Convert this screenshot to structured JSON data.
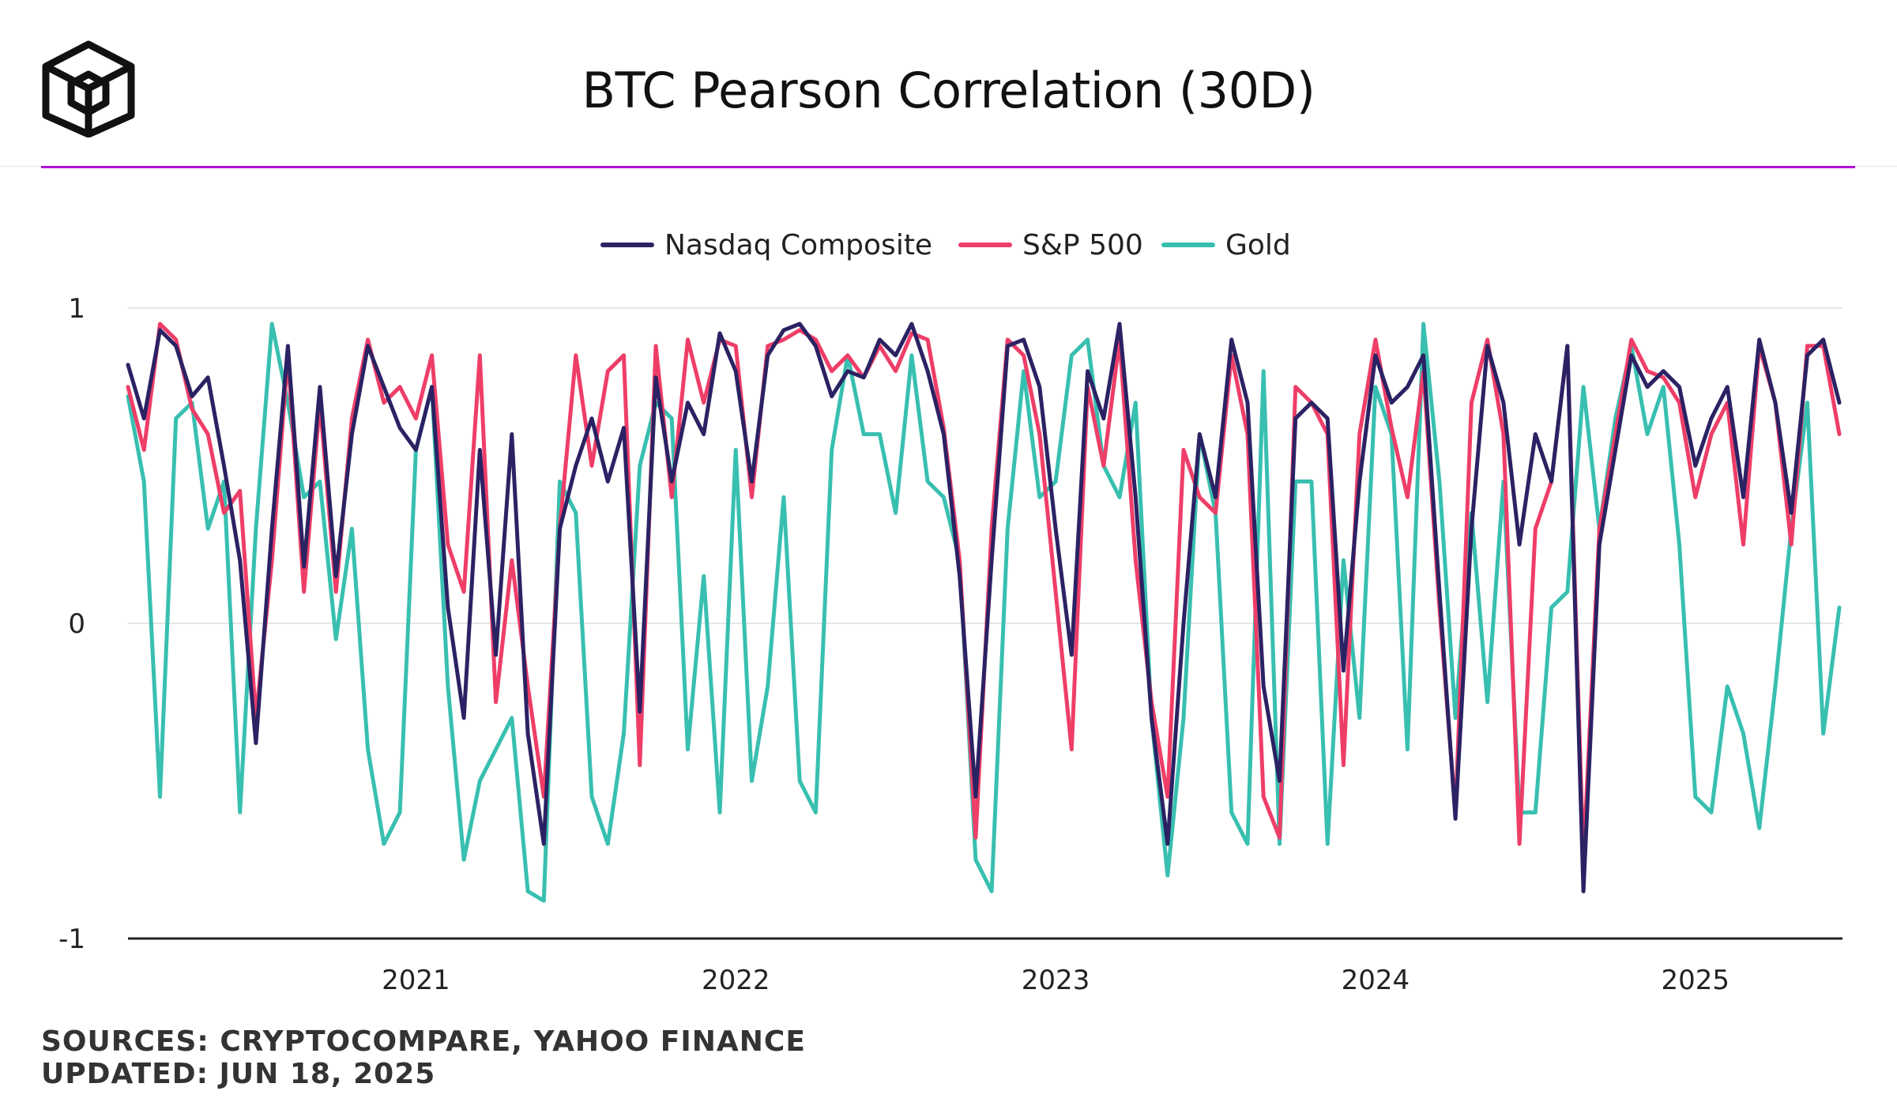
{
  "page": {
    "title": "BTC Pearson Correlation (30D)",
    "sources": "SOURCES: CRYPTOCOMPARE, YAHOO FINANCE",
    "updated": "UPDATED: JUN 18, 2025"
  },
  "colors": {
    "accent": "#B10FD6",
    "nasdaq": "#2B2264",
    "sp500": "#EE3E68",
    "gold": "#38BFB0",
    "axis": "#222222",
    "grid": "#E6E6E6"
  },
  "chart_data": {
    "type": "line",
    "title": "BTC Pearson Correlation (30D)",
    "xlabel": "",
    "ylabel": "",
    "xlim": [
      2020.1,
      2025.46
    ],
    "ylim": [
      -1,
      1
    ],
    "x_ticks": [
      2021,
      2022,
      2023,
      2024,
      2025
    ],
    "x_tick_labels": [
      "2021",
      "2022",
      "2023",
      "2024",
      "2025"
    ],
    "y_ticks": [
      1,
      0,
      -1
    ],
    "y_tick_labels": [
      "1",
      "0",
      "-1"
    ],
    "grid": true,
    "legend_position": "top-center",
    "series": [
      {
        "name": "Nasdaq Composite",
        "color_key": "nasdaq",
        "x": [
          2020.1,
          2020.15,
          2020.2,
          2020.25,
          2020.3,
          2020.35,
          2020.4,
          2020.45,
          2020.5,
          2020.55,
          2020.6,
          2020.65,
          2020.7,
          2020.75,
          2020.8,
          2020.85,
          2020.9,
          2020.95,
          2021.0,
          2021.05,
          2021.1,
          2021.15,
          2021.2,
          2021.25,
          2021.3,
          2021.35,
          2021.4,
          2021.45,
          2021.5,
          2021.55,
          2021.6,
          2021.65,
          2021.7,
          2021.75,
          2021.8,
          2021.85,
          2021.9,
          2021.95,
          2022.0,
          2022.05,
          2022.1,
          2022.15,
          2022.2,
          2022.25,
          2022.3,
          2022.35,
          2022.4,
          2022.45,
          2022.5,
          2022.55,
          2022.6,
          2022.65,
          2022.7,
          2022.75,
          2022.8,
          2022.85,
          2022.9,
          2022.95,
          2023.0,
          2023.05,
          2023.1,
          2023.15,
          2023.2,
          2023.25,
          2023.3,
          2023.35,
          2023.4,
          2023.45,
          2023.5,
          2023.55,
          2023.6,
          2023.65,
          2023.7,
          2023.75,
          2023.8,
          2023.85,
          2023.9,
          2023.95,
          2024.0,
          2024.05,
          2024.1,
          2024.15,
          2024.2,
          2024.25,
          2024.3,
          2024.35,
          2024.4,
          2024.45,
          2024.5,
          2024.55,
          2024.6,
          2024.65,
          2024.7,
          2024.75,
          2024.8,
          2024.85,
          2024.9,
          2024.95,
          2025.0,
          2025.05,
          2025.1,
          2025.15,
          2025.2,
          2025.25,
          2025.3,
          2025.35,
          2025.4,
          2025.45
        ],
        "values": [
          0.82,
          0.65,
          0.93,
          0.88,
          0.72,
          0.78,
          0.5,
          0.2,
          -0.38,
          0.3,
          0.88,
          0.18,
          0.75,
          0.15,
          0.6,
          0.88,
          0.75,
          0.62,
          0.55,
          0.75,
          0.05,
          -0.3,
          0.55,
          -0.1,
          0.6,
          -0.35,
          -0.7,
          0.3,
          0.5,
          0.65,
          0.45,
          0.62,
          -0.28,
          0.78,
          0.45,
          0.7,
          0.6,
          0.92,
          0.8,
          0.45,
          0.85,
          0.93,
          0.95,
          0.88,
          0.72,
          0.8,
          0.78,
          0.9,
          0.85,
          0.95,
          0.8,
          0.6,
          0.15,
          -0.55,
          0.2,
          0.88,
          0.9,
          0.75,
          0.3,
          -0.1,
          0.8,
          0.65,
          0.95,
          0.4,
          -0.3,
          -0.7,
          0.0,
          0.6,
          0.4,
          0.9,
          0.7,
          -0.2,
          -0.5,
          0.65,
          0.7,
          0.65,
          -0.15,
          0.45,
          0.85,
          0.7,
          0.75,
          0.85,
          0.1,
          -0.62,
          0.3,
          0.88,
          0.7,
          0.25,
          0.6,
          0.45,
          0.88,
          -0.85,
          0.25,
          0.55,
          0.85,
          0.75,
          0.8,
          0.75,
          0.5,
          0.65,
          0.75,
          0.4,
          0.9,
          0.7,
          0.35,
          0.85,
          0.9,
          0.7
        ]
      },
      {
        "name": "S&P 500",
        "color_key": "sp500",
        "x": [
          2020.1,
          2020.15,
          2020.2,
          2020.25,
          2020.3,
          2020.35,
          2020.4,
          2020.45,
          2020.5,
          2020.55,
          2020.6,
          2020.65,
          2020.7,
          2020.75,
          2020.8,
          2020.85,
          2020.9,
          2020.95,
          2021.0,
          2021.05,
          2021.1,
          2021.15,
          2021.2,
          2021.25,
          2021.3,
          2021.35,
          2021.4,
          2021.45,
          2021.5,
          2021.55,
          2021.6,
          2021.65,
          2021.7,
          2021.75,
          2021.8,
          2021.85,
          2021.9,
          2021.95,
          2022.0,
          2022.05,
          2022.1,
          2022.15,
          2022.2,
          2022.25,
          2022.3,
          2022.35,
          2022.4,
          2022.45,
          2022.5,
          2022.55,
          2022.6,
          2022.65,
          2022.7,
          2022.75,
          2022.8,
          2022.85,
          2022.9,
          2022.95,
          2023.0,
          2023.05,
          2023.1,
          2023.15,
          2023.2,
          2023.25,
          2023.3,
          2023.35,
          2023.4,
          2023.45,
          2023.5,
          2023.55,
          2023.6,
          2023.65,
          2023.7,
          2023.75,
          2023.8,
          2023.85,
          2023.9,
          2023.95,
          2024.0,
          2024.05,
          2024.1,
          2024.15,
          2024.2,
          2024.25,
          2024.3,
          2024.35,
          2024.4,
          2024.45,
          2024.5,
          2024.55,
          2024.6,
          2024.65,
          2024.7,
          2024.75,
          2024.8,
          2024.85,
          2024.9,
          2024.95,
          2025.0,
          2025.05,
          2025.1,
          2025.15,
          2025.2,
          2025.25,
          2025.3,
          2025.35,
          2025.4,
          2025.45
        ],
        "values": [
          0.75,
          0.55,
          0.95,
          0.9,
          0.68,
          0.6,
          0.35,
          0.42,
          -0.3,
          0.2,
          0.85,
          0.1,
          0.7,
          0.1,
          0.65,
          0.9,
          0.7,
          0.75,
          0.65,
          0.85,
          0.25,
          0.1,
          0.85,
          -0.25,
          0.2,
          -0.2,
          -0.55,
          0.3,
          0.85,
          0.5,
          0.8,
          0.85,
          -0.45,
          0.88,
          0.4,
          0.9,
          0.7,
          0.9,
          0.88,
          0.4,
          0.88,
          0.9,
          0.93,
          0.9,
          0.8,
          0.85,
          0.78,
          0.88,
          0.8,
          0.92,
          0.9,
          0.62,
          0.2,
          -0.68,
          0.3,
          0.9,
          0.85,
          0.6,
          0.1,
          -0.4,
          0.75,
          0.5,
          0.9,
          0.2,
          -0.25,
          -0.55,
          0.55,
          0.4,
          0.35,
          0.85,
          0.6,
          -0.55,
          -0.68,
          0.75,
          0.7,
          0.6,
          -0.45,
          0.6,
          0.9,
          0.62,
          0.4,
          0.8,
          0.05,
          -0.6,
          0.7,
          0.9,
          0.6,
          -0.7,
          0.3,
          0.45,
          0.88,
          -0.75,
          0.3,
          0.6,
          0.9,
          0.8,
          0.78,
          0.7,
          0.4,
          0.6,
          0.7,
          0.25,
          0.88,
          0.7,
          0.25,
          0.88,
          0.88,
          0.6
        ]
      },
      {
        "name": "Gold",
        "color_key": "gold",
        "x": [
          2020.1,
          2020.15,
          2020.2,
          2020.25,
          2020.3,
          2020.35,
          2020.4,
          2020.45,
          2020.5,
          2020.55,
          2020.6,
          2020.65,
          2020.7,
          2020.75,
          2020.8,
          2020.85,
          2020.9,
          2020.95,
          2021.0,
          2021.05,
          2021.1,
          2021.15,
          2021.2,
          2021.25,
          2021.3,
          2021.35,
          2021.4,
          2021.45,
          2021.5,
          2021.55,
          2021.6,
          2021.65,
          2021.7,
          2021.75,
          2021.8,
          2021.85,
          2021.9,
          2021.95,
          2022.0,
          2022.05,
          2022.1,
          2022.15,
          2022.2,
          2022.25,
          2022.3,
          2022.35,
          2022.4,
          2022.45,
          2022.5,
          2022.55,
          2022.6,
          2022.65,
          2022.7,
          2022.75,
          2022.8,
          2022.85,
          2022.9,
          2022.95,
          2023.0,
          2023.05,
          2023.1,
          2023.15,
          2023.2,
          2023.25,
          2023.3,
          2023.35,
          2023.4,
          2023.45,
          2023.5,
          2023.55,
          2023.6,
          2023.65,
          2023.7,
          2023.75,
          2023.8,
          2023.85,
          2023.9,
          2023.95,
          2024.0,
          2024.05,
          2024.1,
          2024.15,
          2024.2,
          2024.25,
          2024.3,
          2024.35,
          2024.4,
          2024.45,
          2024.5,
          2024.55,
          2024.6,
          2024.65,
          2024.7,
          2024.75,
          2024.8,
          2024.85,
          2024.9,
          2024.95,
          2025.0,
          2025.05,
          2025.1,
          2025.15,
          2025.2,
          2025.25,
          2025.3,
          2025.35,
          2025.4,
          2025.45
        ],
        "values": [
          0.72,
          0.45,
          -0.55,
          0.65,
          0.7,
          0.3,
          0.45,
          -0.6,
          0.3,
          0.95,
          0.7,
          0.4,
          0.45,
          -0.05,
          0.3,
          -0.4,
          -0.7,
          -0.6,
          0.55,
          0.75,
          -0.2,
          -0.75,
          -0.5,
          -0.4,
          -0.3,
          -0.85,
          -0.88,
          0.45,
          0.35,
          -0.55,
          -0.7,
          -0.35,
          0.5,
          0.7,
          0.65,
          -0.4,
          0.15,
          -0.6,
          0.55,
          -0.5,
          -0.2,
          0.4,
          -0.5,
          -0.6,
          0.55,
          0.85,
          0.6,
          0.6,
          0.35,
          0.85,
          0.45,
          0.4,
          0.2,
          -0.75,
          -0.85,
          0.3,
          0.8,
          0.4,
          0.45,
          0.85,
          0.9,
          0.5,
          0.4,
          0.7,
          -0.3,
          -0.8,
          -0.3,
          0.6,
          0.35,
          -0.6,
          -0.7,
          0.8,
          -0.7,
          0.45,
          0.45,
          -0.7,
          0.2,
          -0.3,
          0.75,
          0.6,
          -0.4,
          0.95,
          0.45,
          -0.3,
          0.35,
          -0.25,
          0.45,
          -0.6,
          -0.6,
          0.05,
          0.1,
          0.75,
          0.3,
          0.65,
          0.88,
          0.6,
          0.75,
          0.25,
          -0.55,
          -0.6,
          -0.2,
          -0.35,
          -0.65,
          -0.2,
          0.3,
          0.7,
          -0.35,
          0.05
        ]
      }
    ]
  }
}
